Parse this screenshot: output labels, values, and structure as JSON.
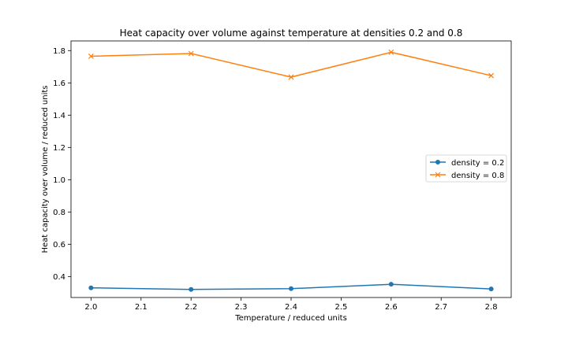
{
  "chart_data": {
    "type": "line",
    "title": "Heat capacity over volume against temperature at densities 0.2 and 0.8",
    "xlabel": "Temperature / reduced units",
    "ylabel": "Heat capacity over volume / reduced units",
    "xlim": [
      1.96,
      2.84
    ],
    "ylim": [
      0.27,
      1.86
    ],
    "xticks": [
      "2.0",
      "2.1",
      "2.2",
      "2.3",
      "2.4",
      "2.5",
      "2.6",
      "2.7",
      "2.8"
    ],
    "yticks": [
      "0.4",
      "0.6",
      "0.8",
      "1.0",
      "1.2",
      "1.4",
      "1.6",
      "1.8"
    ],
    "grid": false,
    "legend_position": "center-right",
    "x": [
      2.0,
      2.2,
      2.4,
      2.6,
      2.8
    ],
    "series": [
      {
        "name": "density = 0.2",
        "values": [
          0.33,
          0.32,
          0.325,
          0.352,
          0.323
        ],
        "color": "#1f77b4",
        "marker": "circle"
      },
      {
        "name": "density = 0.8",
        "values": [
          1.765,
          1.782,
          1.636,
          1.79,
          1.645
        ],
        "color": "#ff7f0e",
        "marker": "x"
      }
    ]
  }
}
